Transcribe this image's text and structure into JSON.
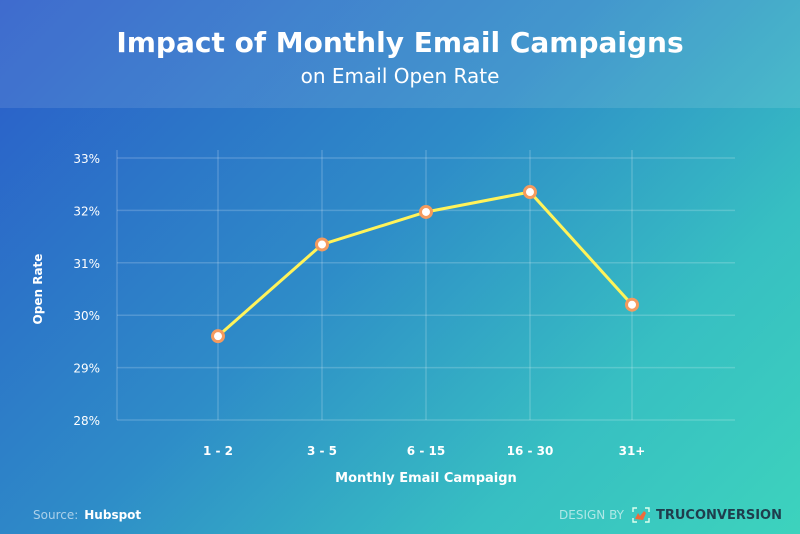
{
  "chart_data": {
    "type": "line",
    "title": "Impact of Monthly Email Campaigns",
    "subtitle": "on Email Open Rate",
    "xlabel": "Monthly Email Campaign",
    "ylabel": "Open Rate",
    "categories": [
      "1 - 2",
      "3 - 5",
      "6 - 15",
      "16 - 30",
      "31+"
    ],
    "values": [
      29.6,
      31.35,
      31.97,
      32.35,
      30.2
    ],
    "yticks": [
      "28%",
      "29%",
      "30%",
      "31%",
      "32%",
      "33%"
    ],
    "ylim": [
      28,
      33
    ],
    "grid": true,
    "colors": {
      "line": "#fff35a",
      "marker_fill": "#ffffff",
      "marker_stroke": "#f59a5e"
    }
  },
  "footer": {
    "source_label": "Source:",
    "source_value": "Hubspot",
    "design_label": "DESIGN BY",
    "brand": "TRUCONVERSION"
  }
}
